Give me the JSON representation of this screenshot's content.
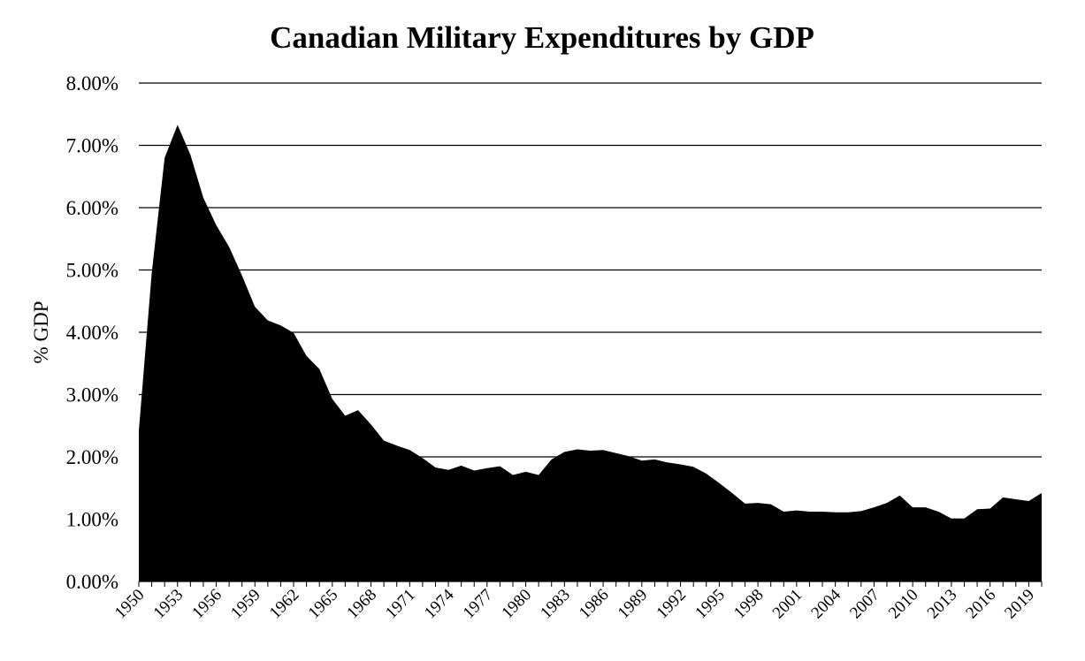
{
  "chart_data": {
    "type": "area",
    "title": "Canadian Military Expenditures by GDP",
    "xlabel": "",
    "ylabel": "% GDP",
    "ylim": [
      0,
      8
    ],
    "y_ticks": [
      "0.00%",
      "1.00%",
      "2.00%",
      "3.00%",
      "4.00%",
      "5.00%",
      "6.00%",
      "7.00%",
      "8.00%"
    ],
    "x_tick_labels": [
      "1950",
      "1953",
      "1956",
      "1959",
      "1962",
      "1965",
      "1968",
      "1971",
      "1974",
      "1977",
      "1980",
      "1983",
      "1986",
      "1989",
      "1992",
      "1995",
      "1998",
      "2001",
      "2004",
      "2007",
      "2010",
      "2013",
      "2016",
      "2019"
    ],
    "grid": "horizontal",
    "colors": {
      "fill": "#000000",
      "grid": "#000000"
    },
    "x": [
      1950,
      1951,
      1952,
      1953,
      1954,
      1955,
      1956,
      1957,
      1958,
      1959,
      1960,
      1961,
      1962,
      1963,
      1964,
      1965,
      1966,
      1967,
      1968,
      1969,
      1970,
      1971,
      1972,
      1973,
      1974,
      1975,
      1976,
      1977,
      1978,
      1979,
      1980,
      1981,
      1982,
      1983,
      1984,
      1985,
      1986,
      1987,
      1988,
      1989,
      1990,
      1991,
      1992,
      1993,
      1994,
      1995,
      1996,
      1997,
      1998,
      1999,
      2000,
      2001,
      2002,
      2003,
      2004,
      2005,
      2006,
      2007,
      2008,
      2009,
      2010,
      2011,
      2012,
      2013,
      2014,
      2015,
      2016,
      2017,
      2018,
      2019,
      2020
    ],
    "values": [
      2.42,
      4.95,
      6.8,
      7.33,
      6.85,
      6.16,
      5.72,
      5.37,
      4.91,
      4.41,
      4.19,
      4.11,
      3.99,
      3.62,
      3.41,
      2.93,
      2.66,
      2.75,
      2.52,
      2.26,
      2.18,
      2.11,
      1.98,
      1.83,
      1.79,
      1.86,
      1.78,
      1.82,
      1.85,
      1.71,
      1.76,
      1.71,
      1.96,
      2.08,
      2.12,
      2.1,
      2.11,
      2.06,
      2.01,
      1.94,
      1.96,
      1.91,
      1.88,
      1.84,
      1.73,
      1.58,
      1.42,
      1.25,
      1.26,
      1.24,
      1.12,
      1.14,
      1.12,
      1.12,
      1.11,
      1.11,
      1.13,
      1.19,
      1.26,
      1.38,
      1.19,
      1.19,
      1.12,
      1.01,
      1.01,
      1.16,
      1.17,
      1.35,
      1.32,
      1.29,
      1.42
    ]
  }
}
